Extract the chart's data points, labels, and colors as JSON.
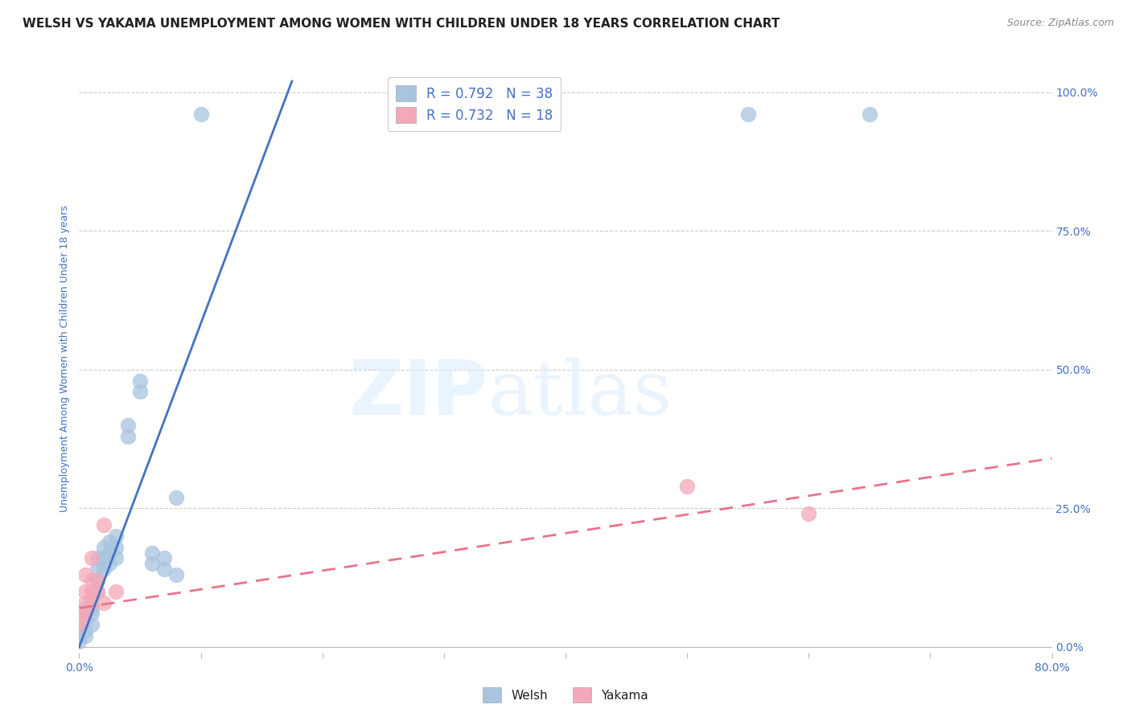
{
  "title": "WELSH VS YAKAMA UNEMPLOYMENT AMONG WOMEN WITH CHILDREN UNDER 18 YEARS CORRELATION CHART",
  "source": "Source: ZipAtlas.com",
  "ylabel": "Unemployment Among Women with Children Under 18 years",
  "right_yticks": [
    0.0,
    0.25,
    0.5,
    0.75,
    1.0
  ],
  "right_yticklabels": [
    "0.0%",
    "25.0%",
    "50.0%",
    "75.0%",
    "100.0%"
  ],
  "xmin": 0.0,
  "xmax": 0.8,
  "ymin": -0.01,
  "ymax": 1.05,
  "welsh_color": "#a8c4e0",
  "yakama_color": "#f4a8b8",
  "welsh_line_color": "#4472c4",
  "yakama_line_color": "#e8748a",
  "legend_r_welsh": "R = 0.792",
  "legend_n_welsh": "N = 38",
  "legend_r_yakama": "R = 0.732",
  "legend_n_yakama": "N = 18",
  "watermark_zip": "ZIP",
  "watermark_atlas": "atlas",
  "title_color": "#222222",
  "axis_label_color": "#4472c4",
  "welsh_scatter": [
    [
      0.0,
      0.01
    ],
    [
      0.0,
      0.02
    ],
    [
      0.0,
      0.03
    ],
    [
      0.0,
      0.04
    ],
    [
      0.005,
      0.02
    ],
    [
      0.005,
      0.03
    ],
    [
      0.005,
      0.05
    ],
    [
      0.005,
      0.07
    ],
    [
      0.01,
      0.04
    ],
    [
      0.01,
      0.06
    ],
    [
      0.01,
      0.07
    ],
    [
      0.01,
      0.09
    ],
    [
      0.015,
      0.1
    ],
    [
      0.015,
      0.12
    ],
    [
      0.015,
      0.14
    ],
    [
      0.015,
      0.16
    ],
    [
      0.02,
      0.14
    ],
    [
      0.02,
      0.16
    ],
    [
      0.02,
      0.18
    ],
    [
      0.025,
      0.15
    ],
    [
      0.025,
      0.17
    ],
    [
      0.025,
      0.19
    ],
    [
      0.03,
      0.16
    ],
    [
      0.03,
      0.18
    ],
    [
      0.03,
      0.2
    ],
    [
      0.04,
      0.38
    ],
    [
      0.04,
      0.4
    ],
    [
      0.05,
      0.46
    ],
    [
      0.05,
      0.48
    ],
    [
      0.06,
      0.15
    ],
    [
      0.06,
      0.17
    ],
    [
      0.07,
      0.14
    ],
    [
      0.07,
      0.16
    ],
    [
      0.08,
      0.13
    ],
    [
      0.08,
      0.27
    ],
    [
      0.1,
      0.96
    ],
    [
      0.55,
      0.96
    ],
    [
      0.65,
      0.96
    ]
  ],
  "yakama_scatter": [
    [
      0.0,
      0.04
    ],
    [
      0.0,
      0.05
    ],
    [
      0.0,
      0.06
    ],
    [
      0.005,
      0.06
    ],
    [
      0.005,
      0.08
    ],
    [
      0.005,
      0.1
    ],
    [
      0.005,
      0.13
    ],
    [
      0.01,
      0.08
    ],
    [
      0.01,
      0.1
    ],
    [
      0.01,
      0.12
    ],
    [
      0.01,
      0.16
    ],
    [
      0.015,
      0.1
    ],
    [
      0.015,
      0.12
    ],
    [
      0.02,
      0.08
    ],
    [
      0.02,
      0.22
    ],
    [
      0.03,
      0.1
    ],
    [
      0.5,
      0.29
    ],
    [
      0.6,
      0.24
    ]
  ],
  "welsh_line_x": [
    0.0,
    0.175
  ],
  "welsh_line_y": [
    0.0,
    1.02
  ],
  "yakama_line_x": [
    0.0,
    0.8
  ],
  "yakama_line_y": [
    0.07,
    0.34
  ],
  "background_color": "#ffffff",
  "grid_color": "#cccccc",
  "title_fontsize": 11,
  "label_fontsize": 9,
  "tick_fontsize": 10
}
